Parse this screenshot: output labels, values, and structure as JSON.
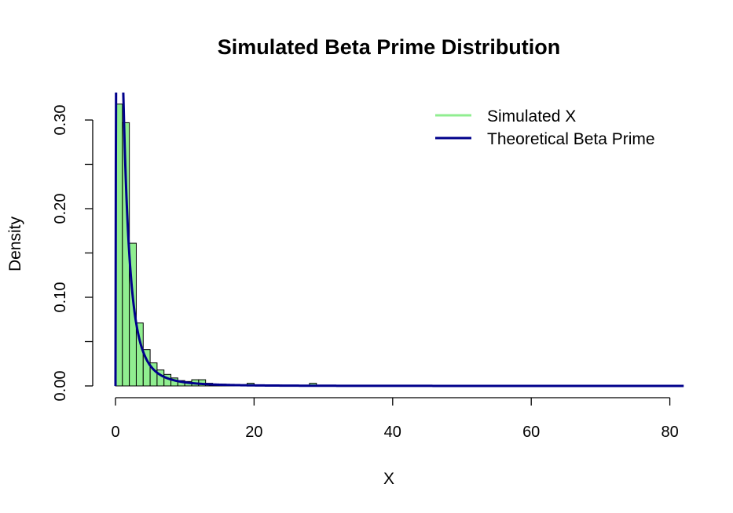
{
  "chart_data": {
    "type": "bar",
    "title": "Simulated Beta Prime Distribution",
    "xlabel": "X",
    "ylabel": "Density",
    "xlim": [
      0,
      82
    ],
    "ylim": [
      0,
      0.33
    ],
    "x_ticks": [
      0,
      20,
      40,
      60,
      80
    ],
    "x_tick_labels": [
      "0",
      "20",
      "40",
      "60",
      "80"
    ],
    "y_ticks": [
      0,
      0.05,
      0.1,
      0.15,
      0.2,
      0.25,
      0.3
    ],
    "y_tick_labels": [
      "0.00",
      "",
      "0.10",
      "",
      "0.20",
      "",
      "0.30"
    ],
    "bin_width": 1,
    "bins_start": 0,
    "histogram": {
      "name": "Simulated X",
      "color": "#90ee90",
      "densities": [
        0.318,
        0.297,
        0.161,
        0.071,
        0.041,
        0.026,
        0.018,
        0.013,
        0.009,
        0.006,
        0.005,
        0.007,
        0.007,
        0.003,
        0.002,
        0.002,
        0.001,
        0.001,
        0.001,
        0.003,
        0.001,
        0.001,
        0.001,
        0.001,
        0.0005,
        0.0005,
        0.0005,
        0.0005,
        0.003,
        0.0005,
        0.0005,
        0.0005,
        0.0005,
        0.0005,
        0,
        0,
        0,
        0,
        0.0005,
        0,
        0,
        0,
        0,
        0,
        0,
        0,
        0,
        0,
        0,
        0,
        0,
        0,
        0,
        0,
        0.0005,
        0,
        0,
        0,
        0,
        0,
        0,
        0,
        0,
        0,
        0.0005,
        0,
        0,
        0,
        0,
        0,
        0,
        0,
        0,
        0.0005,
        0,
        0,
        0,
        0,
        0.0005,
        0,
        0,
        0
      ]
    },
    "curve": {
      "name": "Theoretical Beta Prime",
      "color": "#00008b",
      "alpha": 2,
      "beta": 2,
      "x_max": 82
    },
    "legend": {
      "position": "top-right",
      "entries": [
        {
          "label": "Simulated X",
          "color": "#90ee90"
        },
        {
          "label": "Theoretical Beta Prime",
          "color": "#00008b"
        }
      ]
    }
  }
}
